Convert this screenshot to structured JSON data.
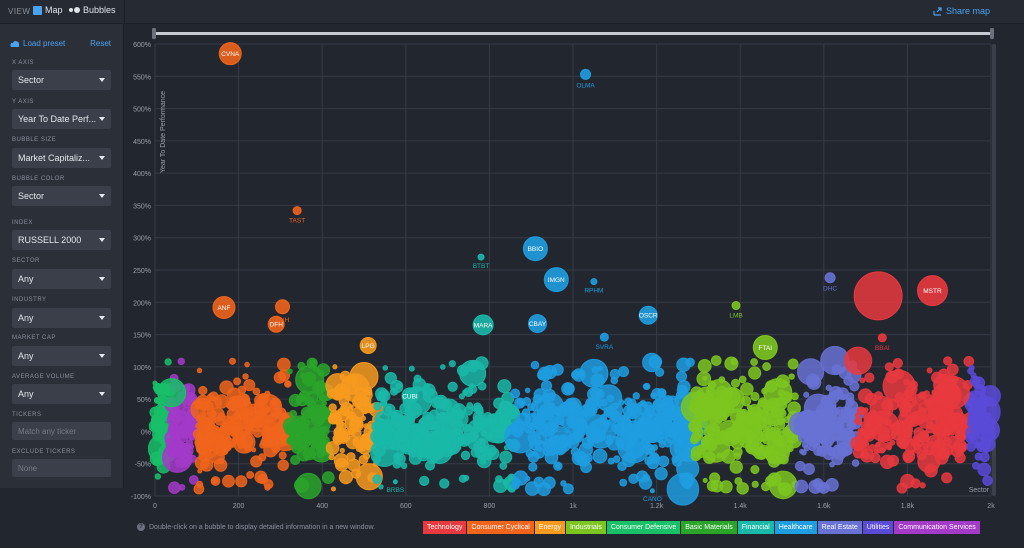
{
  "topbar": {
    "view_label": "VIEW",
    "map_label": "Map",
    "bubbles_label": "Bubbles",
    "share_label": "Share map"
  },
  "sidebar": {
    "load_preset": "Load preset",
    "reset": "Reset",
    "x_axis": {
      "label": "X AXIS",
      "value": "Sector"
    },
    "y_axis": {
      "label": "Y AXIS",
      "value": "Year To Date Perf..."
    },
    "bubble_size": {
      "label": "BUBBLE SIZE",
      "value": "Market Capitaliz..."
    },
    "bubble_color": {
      "label": "BUBBLE COLOR",
      "value": "Sector"
    },
    "index": {
      "label": "INDEX",
      "value": "RUSSELL 2000"
    },
    "sector": {
      "label": "SECTOR",
      "value": "Any"
    },
    "industry": {
      "label": "INDUSTRY",
      "value": "Any"
    },
    "market_cap": {
      "label": "MARKET CAP",
      "value": "Any"
    },
    "average_volume": {
      "label": "AVERAGE VOLUME",
      "value": "Any"
    },
    "tickers": {
      "label": "TICKERS",
      "placeholder": "Match any ticker"
    },
    "exclude_tickers": {
      "label": "EXCLUDE TICKERS",
      "placeholder": "None"
    }
  },
  "footer": {
    "hint": "Double-click on a bubble to display detailed information in a new window."
  },
  "legend": [
    {
      "label": "Technology",
      "color": "#e8393e"
    },
    {
      "label": "Consumer Cyclical",
      "color": "#f0641c"
    },
    {
      "label": "Energy",
      "color": "#f79a1e"
    },
    {
      "label": "Industrials",
      "color": "#7cc520"
    },
    {
      "label": "Consumer Defensive",
      "color": "#18c068"
    },
    {
      "label": "Basic Materials",
      "color": "#2aa52a"
    },
    {
      "label": "Financial",
      "color": "#1ab8a8"
    },
    {
      "label": "Healthcare",
      "color": "#1e9de0"
    },
    {
      "label": "Real Estate",
      "color": "#6872d4"
    },
    {
      "label": "Utilities",
      "color": "#5a4ad8"
    },
    {
      "label": "Communication Services",
      "color": "#a33ac8"
    }
  ],
  "chart_data": {
    "type": "scatter",
    "ylabel": "Year To Date Performance",
    "xlabel": "Sector",
    "xlim": [
      0,
      2000
    ],
    "ylim": [
      -100,
      600
    ],
    "x_ticks": [
      "0",
      "200",
      "400",
      "600",
      "800",
      "1k",
      "1.2k",
      "1.4k",
      "1.6k",
      "1.8k",
      "2k"
    ],
    "y_ticks": [
      "-100%",
      "-50%",
      "0%",
      "50%",
      "100%",
      "150%",
      "200%",
      "250%",
      "300%",
      "350%",
      "400%",
      "450%",
      "500%",
      "550%",
      "600%"
    ],
    "clusters": [
      {
        "sector": "Consumer Defensive",
        "x_range": [
          0,
          40
        ],
        "color": "#18c068"
      },
      {
        "sector": "Communication Services",
        "x_range": [
          40,
          100
        ],
        "color": "#a33ac8"
      },
      {
        "sector": "Consumer Cyclical",
        "x_range": [
          100,
          320
        ],
        "color": "#f0641c"
      },
      {
        "sector": "Basic Materials",
        "x_range": [
          320,
          420
        ],
        "color": "#2aa52a"
      },
      {
        "sector": "Energy",
        "x_range": [
          420,
          530
        ],
        "color": "#f79a1e"
      },
      {
        "sector": "Financial",
        "x_range": [
          530,
          860
        ],
        "color": "#1ab8a8"
      },
      {
        "sector": "Healthcare",
        "x_range": [
          860,
          1290
        ],
        "color": "#1e9de0"
      },
      {
        "sector": "Industrials",
        "x_range": [
          1290,
          1540
        ],
        "color": "#7cc520"
      },
      {
        "sector": "Real Estate",
        "x_range": [
          1540,
          1680
        ],
        "color": "#6872d4"
      },
      {
        "sector": "Technology",
        "x_range": [
          1680,
          1950
        ],
        "color": "#e8393e"
      },
      {
        "sector": "Utilities",
        "x_range": [
          1950,
          2000
        ],
        "color": "#5a4ad8"
      }
    ],
    "labeled_points": [
      {
        "label": "CVNA",
        "x": 180,
        "y": 585,
        "r": 11,
        "color": "#f0641c"
      },
      {
        "label": "OLMA",
        "x": 1030,
        "y": 553,
        "r": 5,
        "color": "#1e9de0"
      },
      {
        "label": "TAST",
        "x": 340,
        "y": 342,
        "r": 4,
        "color": "#f0641c"
      },
      {
        "label": "BBIO",
        "x": 910,
        "y": 283,
        "r": 12,
        "color": "#1e9de0"
      },
      {
        "label": "BTBT",
        "x": 780,
        "y": 270,
        "r": 3,
        "color": "#1ab8a8"
      },
      {
        "label": "IMGN",
        "x": 960,
        "y": 235,
        "r": 12,
        "color": "#1e9de0"
      },
      {
        "label": "RPHM",
        "x": 1050,
        "y": 232,
        "r": 3,
        "color": "#1e9de0"
      },
      {
        "label": "ANF",
        "x": 165,
        "y": 192,
        "r": 11,
        "color": "#f0641c"
      },
      {
        "label": "BVH",
        "x": 305,
        "y": 193,
        "r": 7,
        "color": "#f0641c"
      },
      {
        "label": "DFH",
        "x": 290,
        "y": 166,
        "r": 8,
        "color": "#f0641c"
      },
      {
        "label": "MARA",
        "x": 785,
        "y": 165,
        "r": 10,
        "color": "#1ab8a8"
      },
      {
        "label": "CBAY",
        "x": 915,
        "y": 167,
        "r": 9,
        "color": "#1e9de0"
      },
      {
        "label": "OSCR",
        "x": 1180,
        "y": 180,
        "r": 9,
        "color": "#1e9de0"
      },
      {
        "label": "SVRA",
        "x": 1075,
        "y": 146,
        "r": 4,
        "color": "#1e9de0"
      },
      {
        "label": "LMB",
        "x": 1390,
        "y": 195,
        "r": 4,
        "color": "#7cc520"
      },
      {
        "label": "DHC",
        "x": 1615,
        "y": 238,
        "r": 5,
        "color": "#6872d4"
      },
      {
        "label": "FTAI",
        "x": 1460,
        "y": 130,
        "r": 12,
        "color": "#7cc520"
      },
      {
        "label": "BBAI",
        "x": 1740,
        "y": 145,
        "r": 4,
        "color": "#e8393e"
      },
      {
        "label": "MSTR",
        "x": 1860,
        "y": 218,
        "r": 15,
        "color": "#e8393e"
      },
      {
        "label": "LPG",
        "x": 510,
        "y": 133,
        "r": 8,
        "color": "#f79a1e"
      },
      {
        "label": "CUBI",
        "x": 610,
        "y": 55,
        "r": 8,
        "color": "#1ab8a8"
      },
      {
        "label": "BRBS",
        "x": 575,
        "y": -78,
        "r": 2,
        "color": "#1ab8a8"
      },
      {
        "label": "CANO",
        "x": 1190,
        "y": -92,
        "r": 2,
        "color": "#1e9de0"
      }
    ]
  }
}
